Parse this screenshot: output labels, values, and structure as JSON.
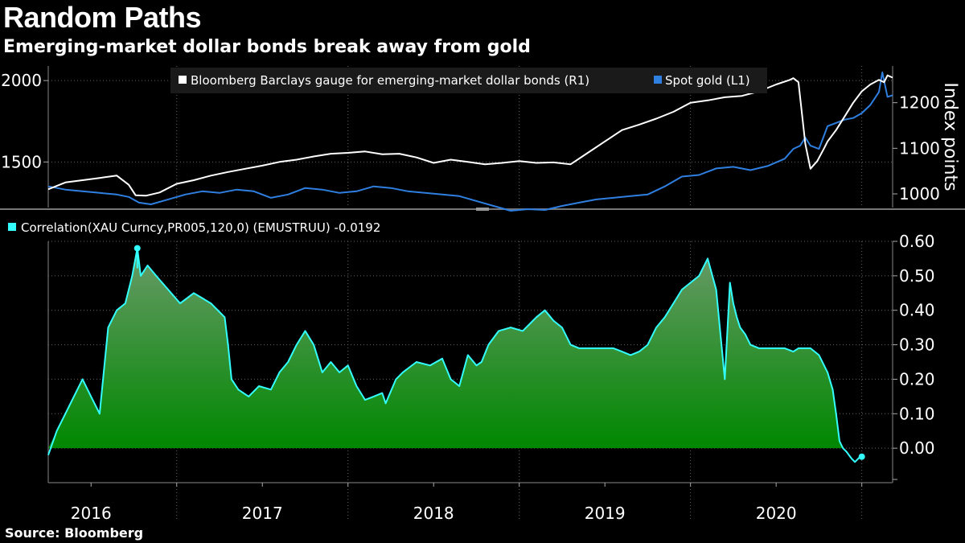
{
  "header": {
    "title": "Random Paths",
    "subtitle": "Emerging-market dollar bonds break away from gold"
  },
  "footer": {
    "source": "Source: Bloomberg"
  },
  "colors": {
    "background": "#000000",
    "bonds": "#ffffff",
    "gold": "#2f7fe0",
    "correlation": "#33ffff",
    "fill_top": "#6a9a6a",
    "fill_bottom": "#008800",
    "grid": "#666666"
  },
  "chart_data": [
    {
      "type": "line",
      "panel": "top",
      "legend": [
        {
          "key": "bonds",
          "label": "Bloomberg Barclays gauge for emerging-market dollar bonds (R1)"
        },
        {
          "key": "gold",
          "label": "Spot gold (L1)"
        }
      ],
      "left_axis": {
        "ylim": [
          1220,
          2060
        ],
        "ticks": [
          "2000",
          "1500"
        ],
        "tick_values": [
          2000,
          1500
        ]
      },
      "right_axis": {
        "label": "Index points",
        "ylim": [
          970,
          1270
        ],
        "ticks": [
          "1200",
          "1100",
          "1000"
        ],
        "tick_values": [
          1200,
          1100,
          1000
        ]
      },
      "x_range": [
        2015.75,
        2020.68
      ],
      "series": [
        {
          "name": "Bloomberg Barclays gauge for emerging-market dollar bonds",
          "axis": "right",
          "x": [
            2015.75,
            2015.85,
            2015.95,
            2016.05,
            2016.15,
            2016.22,
            2016.26,
            2016.32,
            2016.4,
            2016.5,
            2016.6,
            2016.7,
            2016.8,
            2016.9,
            2017.0,
            2017.1,
            2017.2,
            2017.3,
            2017.4,
            2017.5,
            2017.6,
            2017.7,
            2017.8,
            2017.9,
            2018.0,
            2018.1,
            2018.2,
            2018.3,
            2018.4,
            2018.5,
            2018.6,
            2018.7,
            2018.8,
            2018.9,
            2019.0,
            2019.1,
            2019.2,
            2019.3,
            2019.4,
            2019.5,
            2019.6,
            2019.7,
            2019.8,
            2019.9,
            2020.0,
            2020.08,
            2020.1,
            2020.13,
            2020.17,
            2020.2,
            2020.24,
            2020.28,
            2020.3,
            2020.35,
            2020.4,
            2020.45,
            2020.5,
            2020.55,
            2020.6,
            2020.63,
            2020.65,
            2020.68
          ],
          "values": [
            1010,
            1025,
            1030,
            1035,
            1040,
            1020,
            997,
            996,
            1003,
            1022,
            1030,
            1040,
            1048,
            1055,
            1062,
            1070,
            1075,
            1082,
            1088,
            1090,
            1093,
            1087,
            1088,
            1080,
            1068,
            1075,
            1070,
            1065,
            1068,
            1072,
            1068,
            1069,
            1065,
            1090,
            1115,
            1140,
            1152,
            1165,
            1180,
            1200,
            1205,
            1212,
            1215,
            1225,
            1240,
            1250,
            1254,
            1245,
            1110,
            1055,
            1072,
            1100,
            1115,
            1140,
            1170,
            1200,
            1225,
            1240,
            1250,
            1245,
            1260,
            1255
          ]
        },
        {
          "name": "Spot gold",
          "axis": "left",
          "x": [
            2015.75,
            2015.85,
            2015.95,
            2016.05,
            2016.15,
            2016.22,
            2016.28,
            2016.35,
            2016.45,
            2016.55,
            2016.65,
            2016.75,
            2016.85,
            2016.95,
            2017.05,
            2017.15,
            2017.25,
            2017.35,
            2017.45,
            2017.55,
            2017.65,
            2017.75,
            2017.85,
            2017.95,
            2018.05,
            2018.15,
            2018.25,
            2018.35,
            2018.45,
            2018.55,
            2018.65,
            2018.75,
            2018.85,
            2018.95,
            2019.05,
            2019.15,
            2019.25,
            2019.35,
            2019.45,
            2019.55,
            2019.65,
            2019.75,
            2019.85,
            2019.95,
            2020.05,
            2020.1,
            2020.14,
            2020.17,
            2020.2,
            2020.25,
            2020.3,
            2020.35,
            2020.4,
            2020.45,
            2020.5,
            2020.55,
            2020.6,
            2020.62,
            2020.65,
            2020.68
          ],
          "values": [
            1350,
            1330,
            1320,
            1310,
            1300,
            1285,
            1250,
            1240,
            1270,
            1300,
            1320,
            1310,
            1330,
            1320,
            1280,
            1300,
            1340,
            1330,
            1310,
            1320,
            1350,
            1340,
            1320,
            1310,
            1300,
            1290,
            1260,
            1230,
            1200,
            1210,
            1205,
            1230,
            1250,
            1270,
            1280,
            1290,
            1300,
            1350,
            1410,
            1420,
            1460,
            1470,
            1450,
            1475,
            1520,
            1580,
            1600,
            1650,
            1600,
            1580,
            1720,
            1740,
            1760,
            1770,
            1800,
            1850,
            1930,
            2050,
            1900,
            1910
          ]
        }
      ]
    },
    {
      "type": "area",
      "panel": "bottom",
      "legend": [
        {
          "key": "correlation",
          "label": "Correlation(XAU Curncy,PR005,120,0) (EMUSTRUU) -0.0192"
        }
      ],
      "ylim": [
        -0.1,
        0.6
      ],
      "yticks": [
        "0.60",
        "0.50",
        "0.40",
        "0.30",
        "0.20",
        "0.10",
        "0.00"
      ],
      "ytick_values": [
        0.6,
        0.5,
        0.4,
        0.3,
        0.2,
        0.1,
        0.0
      ],
      "x_range": [
        2015.75,
        2020.68
      ],
      "xlabels": [
        "2016",
        "2017",
        "2018",
        "2019",
        "2020"
      ],
      "xlabel_positions": [
        2016.0,
        2017.0,
        2018.0,
        2019.0,
        2020.0
      ],
      "year_boundaries": [
        2016.5,
        2017.5,
        2018.5,
        2019.5,
        2020.5
      ],
      "series": [
        {
          "name": "Correlation(XAU Curncy,PR005,120,0) (EMUSTRUU)",
          "last_value": -0.0192,
          "x": [
            2015.75,
            2015.8,
            2015.85,
            2015.9,
            2015.95,
            2016.0,
            2016.05,
            2016.1,
            2016.15,
            2016.2,
            2016.24,
            2016.27,
            2016.29,
            2016.33,
            2016.38,
            2016.45,
            2016.52,
            2016.6,
            2016.7,
            2016.78,
            2016.8,
            2016.82,
            2016.86,
            2016.92,
            2016.98,
            2017.05,
            2017.1,
            2017.15,
            2017.2,
            2017.25,
            2017.3,
            2017.35,
            2017.4,
            2017.45,
            2017.5,
            2017.55,
            2017.6,
            2017.65,
            2017.7,
            2017.72,
            2017.78,
            2017.82,
            2017.9,
            2017.98,
            2018.05,
            2018.1,
            2018.15,
            2018.2,
            2018.25,
            2018.28,
            2018.32,
            2018.38,
            2018.45,
            2018.52,
            2018.6,
            2018.65,
            2018.7,
            2018.75,
            2018.8,
            2018.85,
            2018.9,
            2018.95,
            2019.0,
            2019.05,
            2019.1,
            2019.15,
            2019.2,
            2019.25,
            2019.3,
            2019.35,
            2019.4,
            2019.45,
            2019.5,
            2019.55,
            2019.6,
            2019.65,
            2019.7,
            2019.73,
            2019.75,
            2019.77,
            2019.79,
            2019.82,
            2019.85,
            2019.9,
            2019.98,
            2020.05,
            2020.1,
            2020.13,
            2020.16,
            2020.2,
            2020.25,
            2020.3,
            2020.33,
            2020.35,
            2020.37,
            2020.39,
            2020.41,
            2020.44,
            2020.46,
            2020.48,
            2020.5
          ],
          "values": [
            -0.02,
            0.05,
            0.1,
            0.15,
            0.2,
            0.15,
            0.1,
            0.35,
            0.4,
            0.42,
            0.5,
            0.58,
            0.5,
            0.53,
            0.5,
            0.46,
            0.42,
            0.45,
            0.42,
            0.38,
            0.3,
            0.2,
            0.17,
            0.15,
            0.18,
            0.17,
            0.22,
            0.25,
            0.3,
            0.34,
            0.3,
            0.22,
            0.25,
            0.22,
            0.24,
            0.18,
            0.14,
            0.15,
            0.16,
            0.13,
            0.2,
            0.22,
            0.25,
            0.24,
            0.26,
            0.2,
            0.18,
            0.27,
            0.24,
            0.25,
            0.3,
            0.34,
            0.35,
            0.34,
            0.38,
            0.4,
            0.37,
            0.35,
            0.3,
            0.29,
            0.29,
            0.29,
            0.29,
            0.29,
            0.28,
            0.27,
            0.28,
            0.3,
            0.35,
            0.38,
            0.42,
            0.46,
            0.48,
            0.5,
            0.55,
            0.46,
            0.2,
            0.48,
            0.42,
            0.38,
            0.35,
            0.33,
            0.3,
            0.29,
            0.29,
            0.29,
            0.28,
            0.29,
            0.29,
            0.29,
            0.27,
            0.22,
            0.17,
            0.1,
            0.02,
            0.0,
            -0.01,
            -0.03,
            -0.04,
            -0.03,
            -0.02
          ]
        }
      ]
    }
  ]
}
